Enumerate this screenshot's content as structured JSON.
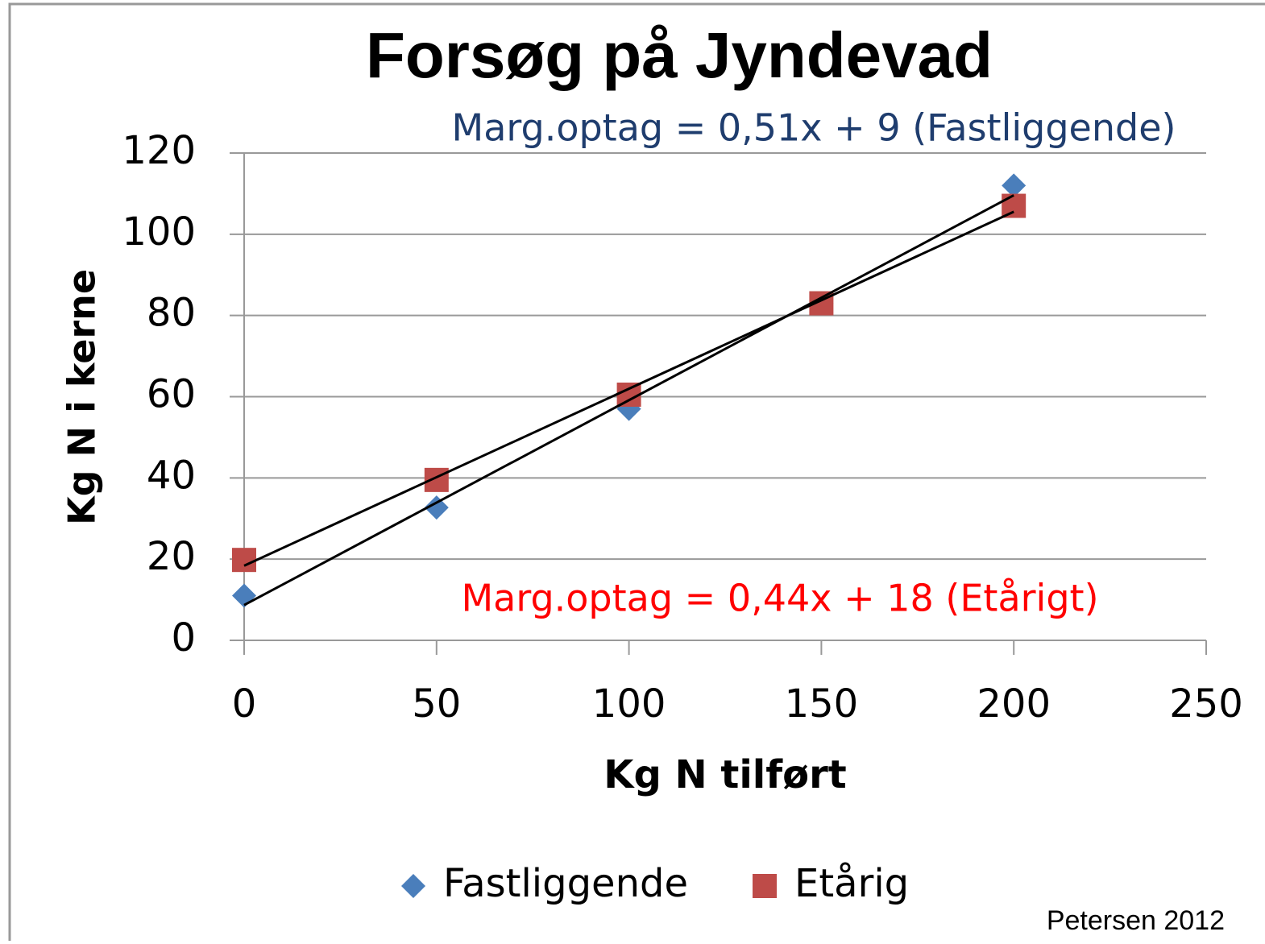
{
  "chart_data": {
    "type": "scatter",
    "title": "Forsøg på Jyndevad",
    "x_label": "Kg N tilført",
    "y_label": "Kg N i kerne",
    "x": [
      0,
      50,
      100,
      150,
      200
    ],
    "series": [
      {
        "name": "Fastliggende",
        "color": "#4a7ebb",
        "marker": "diamond",
        "trendline": true,
        "values": [
          11,
          32.7,
          57,
          83,
          112
        ]
      },
      {
        "name": "Etårig",
        "color": "#be4b48",
        "marker": "square",
        "trendline": true,
        "values": [
          19.8,
          39.5,
          60.5,
          83,
          107
        ]
      }
    ],
    "annotations": [
      {
        "text": "Marg.optag = 0,51x + 9 (Fastliggende)",
        "color": "#1f3d6e"
      },
      {
        "text": "Marg.optag = 0,44x + 18 (Etårigt)",
        "color": "#ff0000"
      }
    ],
    "source": "Petersen 2012",
    "xlim": [
      0,
      250
    ],
    "xticks": [
      0,
      50,
      100,
      150,
      200,
      250
    ],
    "ylim": [
      0,
      120
    ],
    "yticks": [
      0,
      20,
      40,
      60,
      80,
      100,
      120
    ],
    "grid": true,
    "legend": "bottom"
  }
}
